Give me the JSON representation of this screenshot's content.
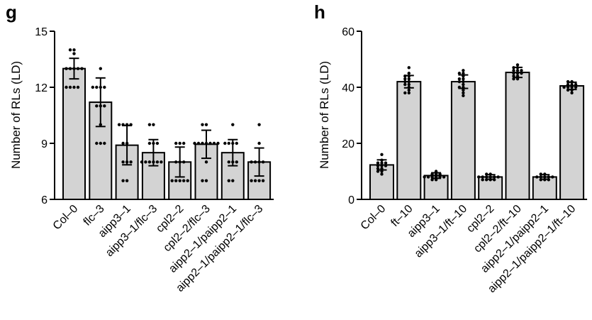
{
  "chart_data": [
    {
      "panel": "g",
      "type": "bar",
      "ylabel": "Number of RLs (LD)",
      "ylim": [
        6,
        15
      ],
      "yticks": [
        6,
        9,
        12,
        15
      ],
      "categories": [
        "Col–0",
        "flc–3",
        "aipp3–1",
        "aipp3–1/flc–3",
        "cpl2–2",
        "cpl2–2/flc–3",
        "aipp2–1/paipp2–1",
        "aipp2–1/paipp2–1/flc–3"
      ],
      "values": [
        13.0,
        11.2,
        8.9,
        8.5,
        8.0,
        8.95,
        8.5,
        8.0
      ],
      "errors": [
        0.55,
        1.3,
        1.05,
        0.7,
        0.8,
        0.75,
        0.7,
        0.75
      ],
      "points": [
        [
          14,
          14,
          13.8,
          13,
          13,
          13,
          13,
          13,
          12,
          12,
          12,
          12
        ],
        [
          13,
          12,
          12,
          12,
          12,
          11,
          11,
          11,
          10,
          9,
          9,
          9
        ],
        [
          10,
          10,
          10,
          10,
          9,
          9,
          8,
          8,
          8,
          7,
          7
        ],
        [
          10,
          10,
          9,
          9,
          9,
          8,
          8,
          8,
          8,
          8,
          8
        ],
        [
          9,
          9,
          9,
          8,
          8,
          8,
          7,
          7,
          7,
          7,
          7
        ],
        [
          10,
          10,
          9,
          9,
          9,
          9,
          9,
          9,
          9,
          8,
          7,
          7
        ],
        [
          10,
          9,
          9,
          9,
          9,
          8,
          8,
          8,
          7,
          7
        ],
        [
          10,
          9,
          8,
          8,
          8,
          8,
          7,
          7,
          7,
          7
        ]
      ]
    },
    {
      "panel": "h",
      "type": "bar",
      "ylabel": "Number of RLs (LD)",
      "ylim": [
        0,
        60
      ],
      "yticks": [
        0,
        20,
        40,
        60
      ],
      "categories": [
        "Col–0",
        "ft–10",
        "aipp3–1",
        "aipp3–1/ft–10",
        "cpl2–2",
        "cpl2–2/ft–10",
        "aipp2–1/paipp2–1",
        "aipp2–1/paipp2–1/ft–10"
      ],
      "values": [
        12.3,
        42.0,
        8.5,
        42.0,
        8.0,
        45.3,
        8.0,
        40.5
      ],
      "errors": [
        1.8,
        2.2,
        1.0,
        2.4,
        0.8,
        1.8,
        0.8,
        1.3
      ],
      "points": [
        [
          16,
          14,
          13,
          13,
          13,
          12,
          12,
          12,
          11,
          11,
          10,
          10,
          9
        ],
        [
          47,
          45,
          44,
          44,
          43,
          43,
          42,
          42,
          41,
          41,
          40,
          39,
          38,
          38
        ],
        [
          10,
          9,
          9,
          9,
          8,
          8,
          8,
          8,
          8,
          8,
          7,
          7
        ],
        [
          46,
          45,
          45,
          44,
          43,
          43,
          42,
          42,
          41,
          40,
          40,
          39,
          38,
          37
        ],
        [
          9,
          9,
          8,
          8,
          8,
          8,
          8,
          8,
          7,
          7,
          7,
          7
        ],
        [
          48,
          47,
          47,
          46,
          46,
          46,
          45,
          45,
          45,
          44,
          44,
          43,
          43
        ],
        [
          9,
          9,
          8,
          8,
          8,
          8,
          8,
          7,
          7,
          7
        ],
        [
          42,
          42,
          41,
          41,
          41,
          40,
          40,
          40,
          40,
          39,
          39,
          38
        ]
      ]
    }
  ],
  "style": {
    "bar_fill": "#d3d3d3",
    "stroke": "#000000"
  }
}
